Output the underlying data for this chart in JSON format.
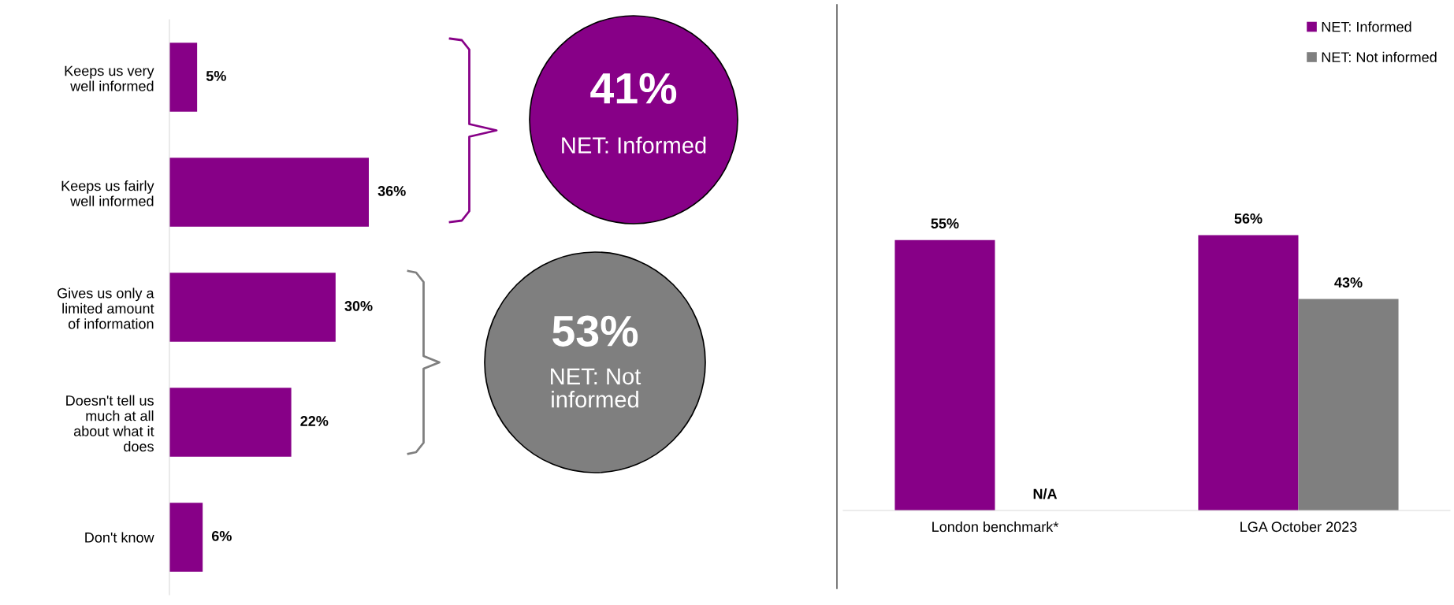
{
  "chart_data": [
    {
      "type": "bar",
      "orientation": "horizontal",
      "categories": [
        "Keeps us very\nwell informed",
        "Keeps us fairly\nwell informed",
        "Gives us only a\nlimited amount\nof information",
        "Doesn't tell us\nmuch at all\nabout what it\ndoes",
        "Don't know"
      ],
      "series": [
        {
          "color": "#870087",
          "values": [
            5,
            36,
            30,
            22,
            6
          ],
          "value_labels": [
            "5%",
            "36%",
            "30%",
            "22%",
            "6%"
          ]
        }
      ],
      "annotations": [
        "41%",
        "NET: Informed",
        "53%",
        "NET: Not\ninformed"
      ],
      "grid": false,
      "legend": false,
      "tick_labels": "y"
    },
    {
      "type": "bar",
      "categories": [
        "London benchmark*",
        "LGA October 2023"
      ],
      "series": [
        {
          "name": "NET: Informed",
          "color": "#870087",
          "values": [
            55,
            56
          ],
          "value_labels": [
            "55%",
            "56%"
          ]
        },
        {
          "name": "NET: Not informed",
          "color": "#7f7f7f",
          "values": [
            null,
            43
          ],
          "value_labels": [
            "N/A",
            "43%"
          ]
        }
      ],
      "grid": false,
      "legend": "top right",
      "tick_labels": "x"
    }
  ]
}
